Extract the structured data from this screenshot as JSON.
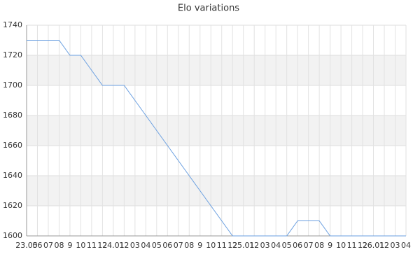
{
  "chart_data": {
    "type": "line",
    "title": "Elo variations",
    "categories": [
      "23.05",
      "06",
      "07",
      "08",
      "9",
      "10",
      "11",
      "12",
      "24.01",
      "12",
      "03",
      "04",
      "05",
      "06",
      "07",
      "08",
      "9",
      "10",
      "11",
      "12",
      "25.01",
      "12",
      "03",
      "04",
      "05",
      "06",
      "07",
      "08",
      "9",
      "10",
      "11",
      "12",
      "26.01",
      "12",
      "03",
      "04"
    ],
    "series": [
      {
        "name": "Elo",
        "color": "#6a9fe0",
        "values": [
          1730,
          1730,
          1730,
          1730,
          1720,
          1720,
          1710,
          1700,
          1700,
          1700,
          1690,
          1680,
          1670,
          1660,
          1650,
          1640,
          1630,
          1620,
          1610,
          1600,
          1600,
          1600,
          1600,
          1600,
          1600,
          1610,
          1610,
          1610,
          1600,
          1600,
          1600,
          1600,
          1600,
          1600,
          1600,
          1600
        ]
      }
    ],
    "ylim": [
      1600,
      1740
    ],
    "yticks": [
      1600,
      1620,
      1640,
      1660,
      1680,
      1700,
      1720,
      1740
    ],
    "grid": true
  }
}
